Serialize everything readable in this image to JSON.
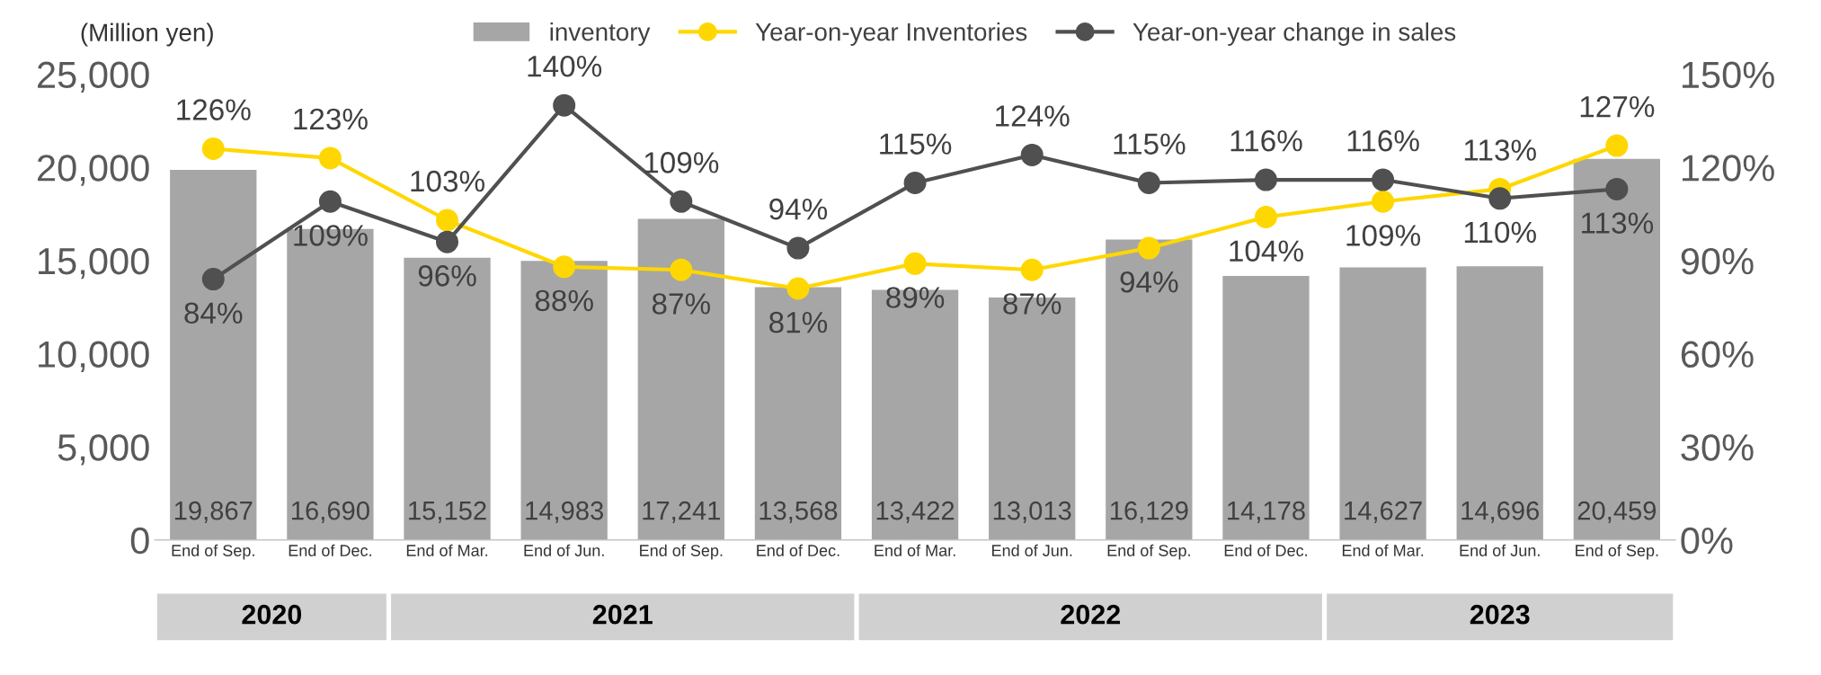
{
  "chart_data": {
    "type": "bar",
    "ylabel": "(Million yen)",
    "categories": [
      "End of Sep.",
      "End of Dec.",
      "End of Mar.",
      "End of Jun.",
      "End of Sep.",
      "End of Dec.",
      "End of Mar.",
      "End of Jun.",
      "End of Sep.",
      "End of Dec.",
      "End of Mar.",
      "End of Jun.",
      "End of Sep."
    ],
    "series": [
      {
        "name": "inventory",
        "color": "#a6a6a6",
        "values": [
          19867,
          16690,
          15152,
          14983,
          17241,
          13568,
          13422,
          13013,
          16129,
          14178,
          14627,
          14696,
          20459
        ],
        "value_labels": [
          "19,867",
          "16,690",
          "15,152",
          "14,983",
          "17,241",
          "13,568",
          "13,422",
          "13,013",
          "16,129",
          "14,178",
          "14,627",
          "14,696",
          "20,459"
        ]
      },
      {
        "name": "Year-on-year Inventories",
        "type": "line",
        "axis": "y2",
        "color": "#ffd700",
        "marker": "circle",
        "values": [
          126,
          123,
          103,
          88,
          87,
          81,
          89,
          87,
          94,
          104,
          109,
          113,
          127
        ],
        "value_labels": [
          "126%",
          "123%",
          "103%",
          "88%",
          "87%",
          "81%",
          "89%",
          "87%",
          "94%",
          "104%",
          "109%",
          "113%",
          "127%"
        ]
      },
      {
        "name": "Year-on-year change in sales",
        "type": "line",
        "axis": "y2",
        "color": "#505050",
        "marker": "circle",
        "values": [
          84,
          109,
          96,
          140,
          109,
          94,
          115,
          124,
          115,
          116,
          116,
          110,
          113
        ],
        "value_labels": [
          "84%",
          "109%",
          "96%",
          "140%",
          "109%",
          "94%",
          "115%",
          "124%",
          "115%",
          "116%",
          "116%",
          "110%",
          "113%"
        ]
      }
    ],
    "ylim": [
      0,
      25000
    ],
    "yticks": [
      {
        "value": 0,
        "label": "0"
      },
      {
        "value": 5000,
        "label": "5,000"
      },
      {
        "value": 10000,
        "label": "10,000"
      },
      {
        "value": 15000,
        "label": "15,000"
      },
      {
        "value": 20000,
        "label": "20,000"
      },
      {
        "value": 25000,
        "label": "25,000"
      }
    ],
    "y2lim": [
      0,
      150
    ],
    "y2ticks": [
      {
        "value": 0,
        "label": "0%"
      },
      {
        "value": 30,
        "label": "30%"
      },
      {
        "value": 60,
        "label": "60%"
      },
      {
        "value": 90,
        "label": "90%"
      },
      {
        "value": 120,
        "label": "120%"
      },
      {
        "value": 150,
        "label": "150%"
      }
    ],
    "legend": "top",
    "grid": false,
    "annotations": [
      "2020",
      "2021",
      "2022",
      "2023"
    ]
  }
}
